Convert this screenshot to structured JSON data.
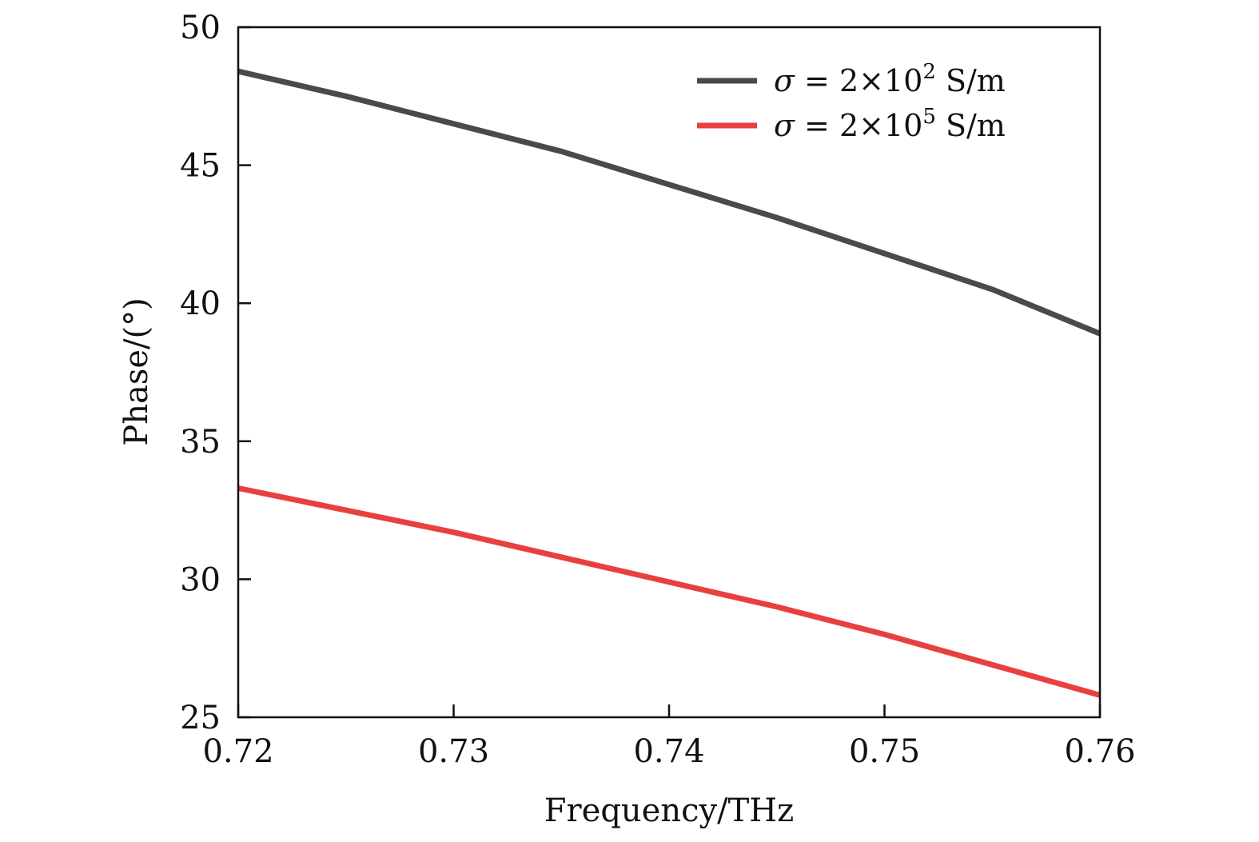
{
  "chart_data": {
    "type": "line",
    "title": "",
    "xlabel": "Frequency/THz",
    "ylabel": "Phase/(°)",
    "xlim": [
      0.72,
      0.76
    ],
    "ylim": [
      25,
      50
    ],
    "xticks": [
      0.72,
      0.73,
      0.74,
      0.75,
      0.76
    ],
    "xtick_labels": [
      "0.72",
      "0.73",
      "0.74",
      "0.75",
      "0.76"
    ],
    "yticks": [
      25,
      30,
      35,
      40,
      45,
      50
    ],
    "ytick_labels": [
      "25",
      "30",
      "35",
      "40",
      "45",
      "50"
    ],
    "grid": false,
    "legend_position": "top-right",
    "x": [
      0.72,
      0.725,
      0.73,
      0.735,
      0.74,
      0.745,
      0.75,
      0.755,
      0.76
    ],
    "series": [
      {
        "name": "σ = 2×10² S/m",
        "legend": {
          "symbol": "σ",
          "rest": " = 2×10",
          "exponent": "2",
          "unit": " S/m"
        },
        "color": "#4a4a4a",
        "values": [
          48.4,
          47.5,
          46.5,
          45.5,
          44.3,
          43.1,
          41.8,
          40.5,
          38.9
        ]
      },
      {
        "name": "σ = 2×10⁵ S/m",
        "legend": {
          "symbol": "σ",
          "rest": " = 2×10",
          "exponent": "5",
          "unit": " S/m"
        },
        "color": "#e8403f",
        "values": [
          33.3,
          32.5,
          31.7,
          30.8,
          29.9,
          29.0,
          28.0,
          26.9,
          25.8
        ]
      }
    ]
  }
}
